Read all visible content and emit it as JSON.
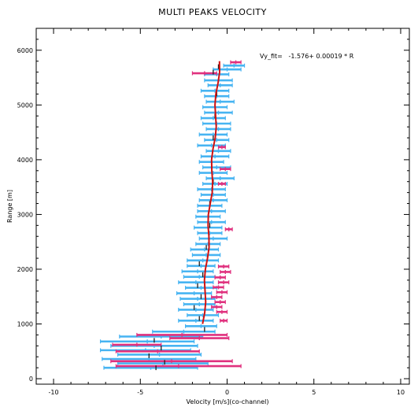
{
  "chart_data": {
    "type": "scatter",
    "title": "MULTI PEAKS VELOCITY",
    "xlabel": "Velocity [m/s](co-channel)",
    "ylabel": "Range [m]",
    "fit_annotation": "Vy_fit=   -1.576+ 0.00019 * R",
    "xlim": [
      -11,
      10.5
    ],
    "ylim": [
      -100,
      6400
    ],
    "x_ticks": [
      -10,
      -5,
      0,
      5,
      10
    ],
    "x_tick_labels": [
      "-10",
      "-5",
      "0",
      "5",
      "10"
    ],
    "y_ticks": [
      0,
      1000,
      2000,
      3000,
      4000,
      5000,
      6000
    ],
    "y_tick_labels": [
      "0",
      "1000",
      "2000",
      "3000",
      "4000",
      "5000",
      "6000"
    ],
    "grid": false,
    "fit_line": {
      "range_start": 1000,
      "range_end": 5800,
      "intercept": -1.576,
      "slope": 0.00019
    },
    "series": [
      {
        "color": "#47b4f2",
        "points": [
          [
            0.4,
            5720,
            0.6
          ],
          [
            0.0,
            5650,
            0.8
          ],
          [
            -0.6,
            5560,
            0.7
          ],
          [
            -0.5,
            5450,
            0.8
          ],
          [
            -0.4,
            5360,
            0.7
          ],
          [
            -0.7,
            5260,
            0.8
          ],
          [
            -0.6,
            5160,
            0.7
          ],
          [
            -0.4,
            5060,
            0.8
          ],
          [
            -0.7,
            4960,
            0.7
          ],
          [
            -0.5,
            4860,
            0.8
          ],
          [
            -0.8,
            4760,
            0.7
          ],
          [
            -0.6,
            4660,
            0.8
          ],
          [
            -0.5,
            4560,
            0.7
          ],
          [
            -0.8,
            4460,
            0.8
          ],
          [
            -0.6,
            4360,
            0.7
          ],
          [
            -0.9,
            4260,
            0.8
          ],
          [
            -0.5,
            4160,
            0.7
          ],
          [
            -0.7,
            4060,
            0.8
          ],
          [
            -0.9,
            3960,
            0.7
          ],
          [
            -0.6,
            3860,
            0.8
          ],
          [
            -0.8,
            3760,
            0.8
          ],
          [
            -0.4,
            3660,
            0.8
          ],
          [
            -0.7,
            3560,
            0.7
          ],
          [
            -0.9,
            3460,
            0.8
          ],
          [
            -0.8,
            3360,
            0.7
          ],
          [
            -0.8,
            3260,
            0.8
          ],
          [
            -1.0,
            3160,
            0.7
          ],
          [
            -0.9,
            3060,
            0.8
          ],
          [
            -1.1,
            2960,
            0.7
          ],
          [
            -0.9,
            2860,
            0.8
          ],
          [
            -1.1,
            2760,
            0.8
          ],
          [
            -1.0,
            2660,
            0.7
          ],
          [
            -0.8,
            2560,
            0.8
          ],
          [
            -1.1,
            2460,
            0.7
          ],
          [
            -1.3,
            2360,
            0.8
          ],
          [
            -1.2,
            2260,
            0.8
          ],
          [
            -1.4,
            2160,
            0.9
          ],
          [
            -1.5,
            2060,
            0.8
          ],
          [
            -1.7,
            1960,
            0.9
          ],
          [
            -1.6,
            1860,
            0.9
          ],
          [
            -1.8,
            1760,
            1.0
          ],
          [
            -1.5,
            1660,
            0.9
          ],
          [
            -1.9,
            1560,
            1.0
          ],
          [
            -1.7,
            1460,
            1.0
          ],
          [
            -1.6,
            1360,
            0.9
          ],
          [
            -1.8,
            1260,
            1.0
          ],
          [
            -1.4,
            1160,
            0.9
          ],
          [
            -1.8,
            1060,
            1.0
          ],
          [
            -1.5,
            960,
            0.9
          ],
          [
            -2.5,
            860,
            1.8
          ],
          [
            -3.8,
            770,
            2.4
          ],
          [
            -4.6,
            680,
            2.7
          ],
          [
            -4.2,
            600,
            2.5
          ],
          [
            -4.7,
            520,
            2.6
          ],
          [
            -3.9,
            440,
            2.4
          ],
          [
            -4.5,
            360,
            2.7
          ],
          [
            -3.7,
            280,
            2.6
          ],
          [
            -4.4,
            200,
            2.7
          ]
        ]
      },
      {
        "color": "#e0317e",
        "points": [
          [
            0.5,
            5780,
            0.3
          ],
          [
            -1.3,
            5580,
            0.7
          ],
          [
            -0.3,
            4230,
            0.2
          ],
          [
            -0.1,
            3830,
            0.3
          ],
          [
            -0.3,
            3560,
            0.2
          ],
          [
            0.1,
            2730,
            0.2
          ],
          [
            -0.2,
            2050,
            0.3
          ],
          [
            -0.1,
            1950,
            0.3
          ],
          [
            -0.4,
            1850,
            0.3
          ],
          [
            -0.2,
            1760,
            0.3
          ],
          [
            -0.5,
            1670,
            0.3
          ],
          [
            -0.3,
            1580,
            0.3
          ],
          [
            -0.6,
            1490,
            0.3
          ],
          [
            -0.4,
            1400,
            0.3
          ],
          [
            -0.6,
            1310,
            0.3
          ],
          [
            -0.3,
            1220,
            0.3
          ],
          [
            -0.2,
            1060,
            0.2
          ],
          [
            -2.6,
            800,
            2.6
          ],
          [
            -1.6,
            740,
            1.7
          ],
          [
            -5.2,
            620,
            1.4
          ],
          [
            -4.0,
            500,
            2.4
          ],
          [
            -3.2,
            320,
            3.5
          ],
          [
            -2.8,
            230,
            3.6
          ]
        ]
      },
      {
        "color": "#1e1e1e",
        "points": [
          [
            -0.5,
            5700
          ],
          [
            -0.8,
            5600
          ],
          [
            -0.6,
            5200
          ],
          [
            -0.7,
            4800
          ],
          [
            -0.8,
            4400
          ],
          [
            -0.9,
            4000
          ],
          [
            -0.8,
            3600
          ],
          [
            -1.0,
            3200
          ],
          [
            -1.0,
            2800
          ],
          [
            -1.2,
            2400
          ],
          [
            -1.6,
            2100
          ],
          [
            -1.4,
            1900
          ],
          [
            -1.7,
            1700
          ],
          [
            -1.5,
            1500
          ],
          [
            -1.9,
            1300
          ],
          [
            -1.6,
            1100
          ],
          [
            -1.3,
            900
          ],
          [
            -4.2,
            700
          ],
          [
            -3.8,
            560
          ],
          [
            -4.5,
            420
          ],
          [
            -3.6,
            300
          ],
          [
            -4.1,
            200
          ]
        ]
      }
    ]
  }
}
